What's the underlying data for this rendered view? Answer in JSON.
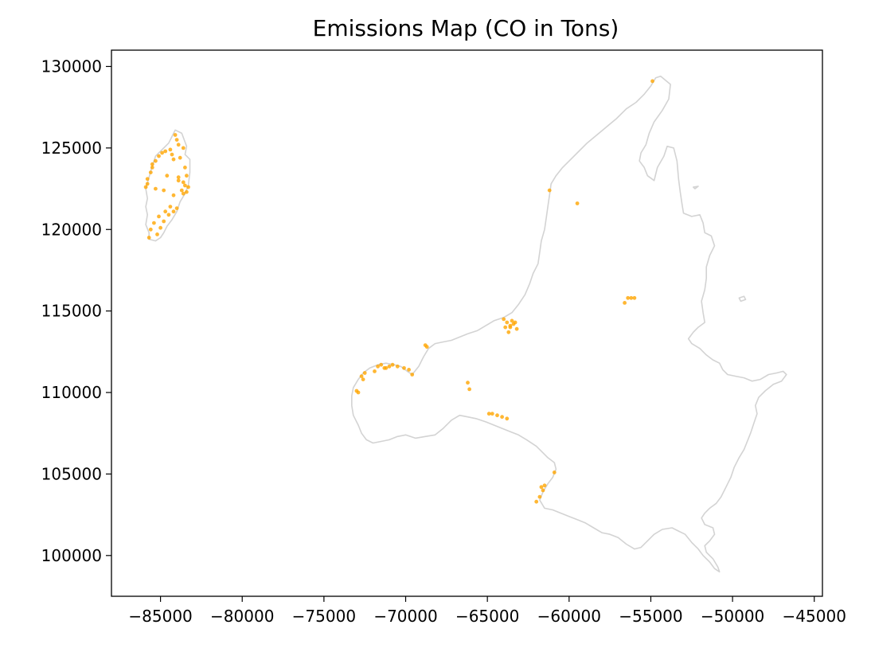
{
  "chart_data": {
    "type": "scatter",
    "title": "Emissions Map (CO in Tons)",
    "xlabel": "",
    "ylabel": "",
    "xlim": [
      -88000,
      -44500
    ],
    "ylim": [
      97500,
      131000
    ],
    "x_ticks": [
      -85000,
      -80000,
      -75000,
      -70000,
      -65000,
      -60000,
      -55000,
      -50000,
      -45000
    ],
    "x_tick_labels": [
      "−85000",
      "−80000",
      "−75000",
      "−70000",
      "−65000",
      "−60000",
      "−55000",
      "−50000",
      "−45000"
    ],
    "y_ticks": [
      100000,
      105000,
      110000,
      115000,
      120000,
      125000,
      130000
    ],
    "y_tick_labels": [
      "100000",
      "105000",
      "110000",
      "115000",
      "120000",
      "125000",
      "130000"
    ],
    "grid": false,
    "colors": {
      "points": "#ffa500",
      "boundary": "#d3d3d3"
    },
    "boundaries": [
      {
        "part": "west-island",
        "coords": [
          [
            -84100,
            126100
          ],
          [
            -83700,
            125900
          ],
          [
            -83400,
            125100
          ],
          [
            -83500,
            124600
          ],
          [
            -83200,
            124300
          ],
          [
            -83200,
            123500
          ],
          [
            -83300,
            122700
          ],
          [
            -83500,
            122200
          ],
          [
            -83800,
            121700
          ],
          [
            -84000,
            121100
          ],
          [
            -84300,
            120600
          ],
          [
            -84600,
            120200
          ],
          [
            -84800,
            119800
          ],
          [
            -85000,
            119500
          ],
          [
            -85300,
            119300
          ],
          [
            -85700,
            119400
          ],
          [
            -85700,
            119800
          ],
          [
            -85900,
            120300
          ],
          [
            -85800,
            120900
          ],
          [
            -85900,
            121400
          ],
          [
            -85800,
            121900
          ],
          [
            -85900,
            122500
          ],
          [
            -85700,
            123200
          ],
          [
            -85500,
            123900
          ],
          [
            -85300,
            124500
          ],
          [
            -84900,
            124900
          ],
          [
            -84500,
            125300
          ],
          [
            -84300,
            125700
          ],
          [
            -84100,
            126100
          ]
        ]
      },
      {
        "part": "mainland",
        "coords": [
          [
            -54400,
            129400
          ],
          [
            -53800,
            128900
          ],
          [
            -53900,
            128000
          ],
          [
            -54300,
            127300
          ],
          [
            -54800,
            126600
          ],
          [
            -55100,
            125900
          ],
          [
            -55300,
            125200
          ],
          [
            -55600,
            124700
          ],
          [
            -55700,
            124200
          ],
          [
            -55400,
            123800
          ],
          [
            -55200,
            123300
          ],
          [
            -54800,
            123000
          ],
          [
            -54600,
            123800
          ],
          [
            -54200,
            124500
          ],
          [
            -54000,
            125100
          ],
          [
            -53600,
            125000
          ],
          [
            -53400,
            124200
          ],
          [
            -53300,
            123100
          ],
          [
            -53200,
            122300
          ],
          [
            -53100,
            121600
          ],
          [
            -53000,
            121000
          ],
          [
            -52500,
            120800
          ],
          [
            -52000,
            120900
          ],
          [
            -51800,
            120400
          ],
          [
            -51700,
            119800
          ],
          [
            -51300,
            119600
          ],
          [
            -51100,
            119000
          ],
          [
            -51400,
            118400
          ],
          [
            -51600,
            117700
          ],
          [
            -51600,
            117000
          ],
          [
            -51700,
            116300
          ],
          [
            -51900,
            115600
          ],
          [
            -51800,
            114900
          ],
          [
            -51700,
            114300
          ],
          [
            -52100,
            114000
          ],
          [
            -52400,
            113700
          ],
          [
            -52700,
            113300
          ],
          [
            -52500,
            113000
          ],
          [
            -52000,
            112700
          ],
          [
            -51600,
            112300
          ],
          [
            -51200,
            112000
          ],
          [
            -50800,
            111800
          ],
          [
            -50600,
            111400
          ],
          [
            -50300,
            111100
          ],
          [
            -49800,
            111000
          ],
          [
            -49300,
            110900
          ],
          [
            -48800,
            110700
          ],
          [
            -48300,
            110800
          ],
          [
            -47800,
            111100
          ],
          [
            -47300,
            111200
          ],
          [
            -46900,
            111300
          ],
          [
            -46700,
            111100
          ],
          [
            -47000,
            110700
          ],
          [
            -47500,
            110500
          ],
          [
            -48000,
            110100
          ],
          [
            -48400,
            109700
          ],
          [
            -48600,
            109200
          ],
          [
            -48500,
            108700
          ],
          [
            -48700,
            108100
          ],
          [
            -48900,
            107500
          ],
          [
            -49100,
            107000
          ],
          [
            -49300,
            106500
          ],
          [
            -49600,
            106000
          ],
          [
            -49900,
            105400
          ],
          [
            -50100,
            104800
          ],
          [
            -50400,
            104200
          ],
          [
            -50700,
            103600
          ],
          [
            -51000,
            103200
          ],
          [
            -51400,
            102900
          ],
          [
            -51700,
            102600
          ],
          [
            -51900,
            102300
          ],
          [
            -51700,
            101900
          ],
          [
            -51200,
            101700
          ],
          [
            -51100,
            101300
          ],
          [
            -51400,
            100900
          ],
          [
            -51700,
            100600
          ],
          [
            -51600,
            100200
          ],
          [
            -51200,
            99800
          ],
          [
            -50900,
            99300
          ],
          [
            -50800,
            99000
          ],
          [
            -51100,
            99200
          ],
          [
            -51400,
            99600
          ],
          [
            -51800,
            100000
          ],
          [
            -52100,
            100400
          ],
          [
            -52500,
            100800
          ],
          [
            -52900,
            101300
          ],
          [
            -53300,
            101500
          ],
          [
            -53700,
            101700
          ],
          [
            -54300,
            101600
          ],
          [
            -54800,
            101300
          ],
          [
            -55200,
            100900
          ],
          [
            -55600,
            100500
          ],
          [
            -56000,
            100400
          ],
          [
            -56500,
            100700
          ],
          [
            -57000,
            101100
          ],
          [
            -57500,
            101300
          ],
          [
            -58000,
            101400
          ],
          [
            -58500,
            101700
          ],
          [
            -59000,
            102000
          ],
          [
            -59500,
            102200
          ],
          [
            -60000,
            102400
          ],
          [
            -60500,
            102600
          ],
          [
            -61000,
            102800
          ],
          [
            -61500,
            102900
          ],
          [
            -61800,
            103400
          ],
          [
            -61600,
            103900
          ],
          [
            -61300,
            104400
          ],
          [
            -61000,
            104800
          ],
          [
            -60800,
            105300
          ],
          [
            -60900,
            105700
          ],
          [
            -61300,
            106000
          ],
          [
            -61600,
            106300
          ],
          [
            -62000,
            106700
          ],
          [
            -62600,
            107100
          ],
          [
            -63100,
            107400
          ],
          [
            -63600,
            107600
          ],
          [
            -64100,
            107800
          ],
          [
            -64600,
            108000
          ],
          [
            -65100,
            108200
          ],
          [
            -65700,
            108400
          ],
          [
            -66200,
            108500
          ],
          [
            -66700,
            108600
          ],
          [
            -67200,
            108300
          ],
          [
            -67700,
            107800
          ],
          [
            -68200,
            107400
          ],
          [
            -68800,
            107300
          ],
          [
            -69400,
            107200
          ],
          [
            -70000,
            107400
          ],
          [
            -70500,
            107300
          ],
          [
            -71000,
            107100
          ],
          [
            -71500,
            107000
          ],
          [
            -72000,
            106900
          ],
          [
            -72400,
            107100
          ],
          [
            -72700,
            107500
          ],
          [
            -72900,
            108000
          ],
          [
            -73200,
            108600
          ],
          [
            -73300,
            109200
          ],
          [
            -73300,
            109800
          ],
          [
            -73200,
            110300
          ],
          [
            -72900,
            110800
          ],
          [
            -72600,
            111200
          ],
          [
            -72200,
            111500
          ],
          [
            -71700,
            111700
          ],
          [
            -71200,
            111800
          ],
          [
            -70700,
            111700
          ],
          [
            -70300,
            111600
          ],
          [
            -69900,
            111300
          ],
          [
            -69600,
            111100
          ],
          [
            -69200,
            111600
          ],
          [
            -68900,
            112200
          ],
          [
            -68600,
            112700
          ],
          [
            -68200,
            113000
          ],
          [
            -67700,
            113100
          ],
          [
            -67200,
            113200
          ],
          [
            -66700,
            113400
          ],
          [
            -66200,
            113600
          ],
          [
            -65600,
            113800
          ],
          [
            -65100,
            114100
          ],
          [
            -64600,
            114400
          ],
          [
            -64000,
            114600
          ],
          [
            -63500,
            114900
          ],
          [
            -63100,
            115400
          ],
          [
            -62700,
            116000
          ],
          [
            -62400,
            116700
          ],
          [
            -62200,
            117300
          ],
          [
            -61900,
            117900
          ],
          [
            -61800,
            118600
          ],
          [
            -61700,
            119300
          ],
          [
            -61500,
            120000
          ],
          [
            -61400,
            120700
          ],
          [
            -61300,
            121400
          ],
          [
            -61200,
            122100
          ],
          [
            -61100,
            122800
          ],
          [
            -60800,
            123300
          ],
          [
            -60400,
            123800
          ],
          [
            -59900,
            124300
          ],
          [
            -59400,
            124800
          ],
          [
            -58900,
            125300
          ],
          [
            -58300,
            125800
          ],
          [
            -57700,
            126300
          ],
          [
            -57100,
            126800
          ],
          [
            -56500,
            127400
          ],
          [
            -55900,
            127800
          ],
          [
            -55400,
            128300
          ],
          [
            -55000,
            128800
          ],
          [
            -54700,
            129300
          ],
          [
            -54400,
            129400
          ]
        ]
      },
      {
        "part": "islet-east",
        "coords": [
          [
            -49600,
            115800
          ],
          [
            -49300,
            115900
          ],
          [
            -49200,
            115700
          ],
          [
            -49500,
            115600
          ],
          [
            -49600,
            115800
          ]
        ]
      },
      {
        "part": "islet-north",
        "coords": [
          [
            -52400,
            122600
          ],
          [
            -52100,
            122650
          ],
          [
            -52300,
            122500
          ],
          [
            -52400,
            122600
          ]
        ]
      }
    ],
    "series": [
      {
        "x": [
          -84100,
          -84000,
          -83900,
          -83600,
          -84400,
          -84700,
          -84900,
          -85100,
          -85300,
          -85500,
          -85600,
          -85800,
          -85900,
          -84300,
          -84200,
          -83800,
          -83500,
          -83400,
          -83600,
          -83300,
          -83700,
          -83500,
          -83900,
          -83400,
          -84000,
          -84200,
          -84500,
          -84800,
          -85000,
          -85200,
          -85700,
          -85600,
          -85400,
          -85100,
          -84700,
          -84400,
          -84800,
          -85300,
          -84200,
          -83900,
          -83600,
          -84600,
          -85500,
          -85800
        ],
        "y": [
          125800,
          125500,
          125200,
          125000,
          124900,
          124800,
          124700,
          124500,
          124200,
          123800,
          123500,
          122800,
          122600,
          124600,
          124300,
          124400,
          123800,
          123300,
          122900,
          122600,
          122400,
          122700,
          123200,
          122300,
          121300,
          121100,
          120900,
          120500,
          120100,
          119700,
          119500,
          120000,
          120400,
          120800,
          121100,
          121400,
          122400,
          122500,
          122100,
          123000,
          122200,
          123300,
          124000,
          123100
        ]
      },
      {
        "x": [
          -72700,
          -72600,
          -72500,
          -72900,
          -73000,
          -71700,
          -71500,
          -71300,
          -71000,
          -70800,
          -70500,
          -70100,
          -69800,
          -69600,
          -71900,
          -71200,
          -68800,
          -68700,
          -66200,
          -66100,
          -64900,
          -64700,
          -64400,
          -64100,
          -63800,
          -62000,
          -61800,
          -61600,
          -61700,
          -61500,
          -60900,
          -64000,
          -63800,
          -63600,
          -63400,
          -63200,
          -63900,
          -63700,
          -63500,
          -63300,
          -63600,
          -61200,
          -59500,
          -56400,
          -56200,
          -56000,
          -56600,
          -54900
        ],
        "y": [
          111000,
          110800,
          111200,
          110000,
          110100,
          111600,
          111700,
          111500,
          111600,
          111700,
          111600,
          111500,
          111400,
          111100,
          111300,
          111500,
          112900,
          112800,
          110600,
          110200,
          108700,
          108700,
          108600,
          108500,
          108400,
          103300,
          103600,
          104000,
          104200,
          104300,
          105100,
          114500,
          114300,
          114100,
          114200,
          113900,
          114000,
          113700,
          114400,
          114300,
          114000,
          122400,
          121600,
          115800,
          115800,
          115800,
          115500,
          129100
        ]
      }
    ]
  }
}
